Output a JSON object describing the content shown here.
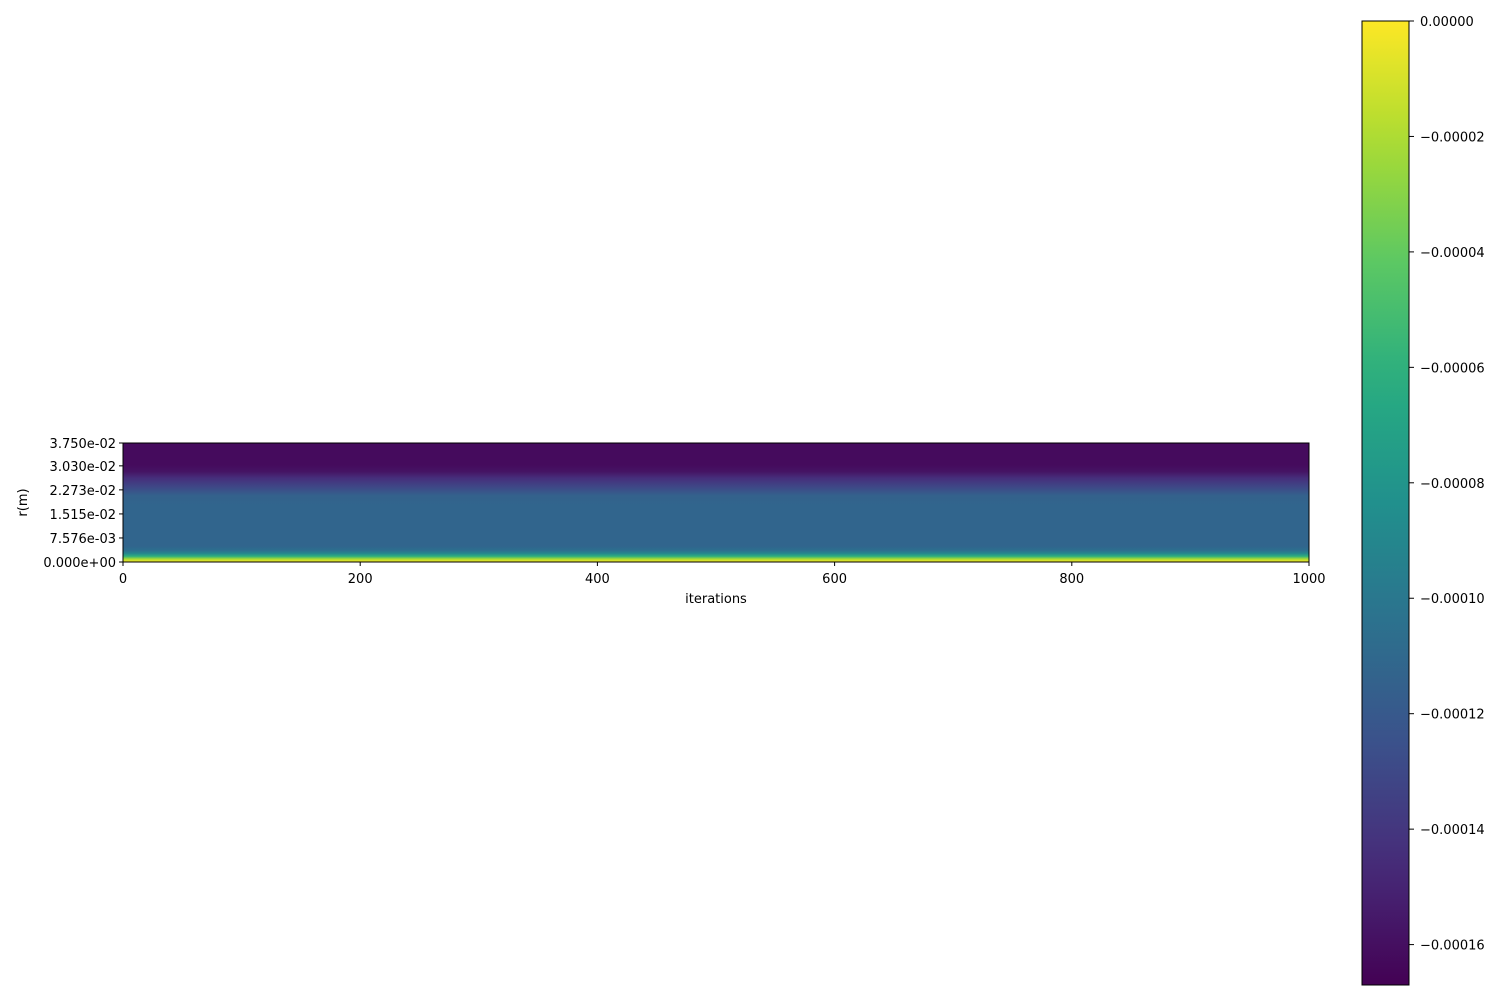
{
  "chart_data": {
    "type": "heatmap",
    "title": "",
    "xlabel": "iterations",
    "ylabel": "r(m)",
    "xlim": [
      0,
      1000
    ],
    "ylim": [
      0,
      0.0375
    ],
    "x_ticks": [
      "0",
      "200",
      "400",
      "600",
      "800",
      "1000"
    ],
    "y_ticks": [
      {
        "value": 0,
        "label": "0.000e+00"
      },
      {
        "value": 0.007576,
        "label": "7.576e-03"
      },
      {
        "value": 0.01515,
        "label": "1.515e-02"
      },
      {
        "value": 0.02273,
        "label": "2.273e-02"
      },
      {
        "value": 0.0303,
        "label": "3.030e-02"
      },
      {
        "value": 0.0375,
        "label": "3.750e-02"
      }
    ],
    "colormap": "viridis",
    "colorbar": {
      "range": [
        -0.000167,
        0.0
      ],
      "ticks": [
        {
          "value": 0.0,
          "label": "0.00000"
        },
        {
          "value": -2e-05,
          "label": "−0.00002"
        },
        {
          "value": -4e-05,
          "label": "−0.00004"
        },
        {
          "value": -6e-05,
          "label": "−0.00006"
        },
        {
          "value": -8e-05,
          "label": "−0.00008"
        },
        {
          "value": -0.0001,
          "label": "−0.00010"
        },
        {
          "value": -0.00012,
          "label": "−0.00012"
        },
        {
          "value": -0.00014,
          "label": "−0.00014"
        },
        {
          "value": -0.00016,
          "label": "−0.00016"
        }
      ]
    },
    "field_note_constant_along_x": true,
    "r_profile": [
      {
        "r": 0.0,
        "value": 0.0
      },
      {
        "r": 0.0009,
        "value": -2e-05
      },
      {
        "r": 0.0018,
        "value": -6e-05
      },
      {
        "r": 0.0027,
        "value": -9e-05
      },
      {
        "r": 0.0036,
        "value": -0.000105
      },
      {
        "r": 0.005,
        "value": -0.000112
      },
      {
        "r": 0.01,
        "value": -0.000112
      },
      {
        "r": 0.018,
        "value": -0.000112
      },
      {
        "r": 0.021,
        "value": -0.000115
      },
      {
        "r": 0.0235,
        "value": -0.00013
      },
      {
        "r": 0.0265,
        "value": -0.000145
      },
      {
        "r": 0.0285,
        "value": -0.000158
      },
      {
        "r": 0.0305,
        "value": -0.000162
      },
      {
        "r": 0.0375,
        "value": -0.000162
      }
    ]
  }
}
